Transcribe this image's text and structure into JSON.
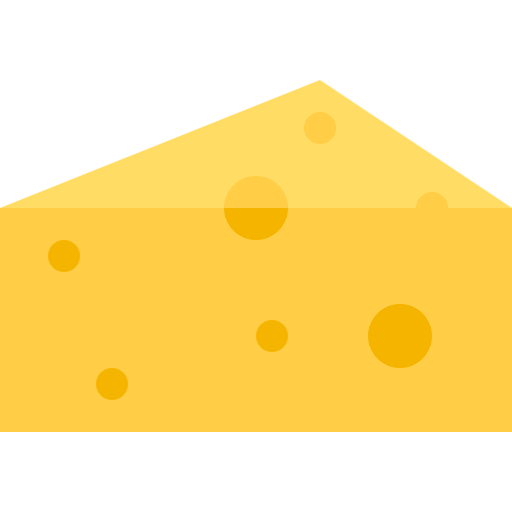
{
  "icon": {
    "name": "cheese-wedge-icon",
    "colors": {
      "top_face": "#FFDC64",
      "front_face": "#FFCD46",
      "hole_top": "#FFCD46",
      "hole_front": "#F5B400"
    }
  }
}
